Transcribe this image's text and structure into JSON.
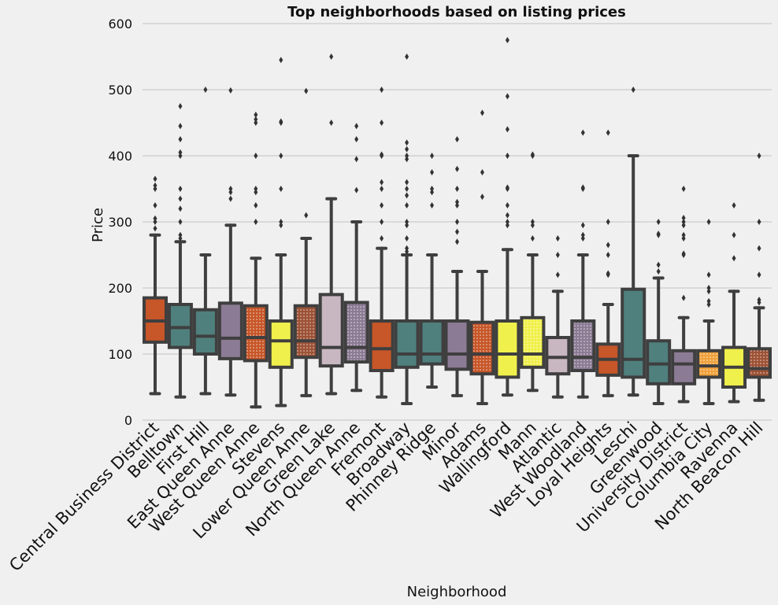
{
  "chart_data": {
    "type": "box",
    "title": "Top neighborhoods based on listing prices",
    "xlabel": "Neighborhood",
    "ylabel": "Price",
    "ylim": [
      -10,
      600
    ],
    "yticks": [
      0,
      100,
      200,
      300,
      400,
      500,
      600
    ],
    "grid": "horizontal",
    "categories": [
      "Central Business District",
      "Belltown",
      "First Hill",
      "East Queen Anne",
      "West Queen Anne",
      "Stevens",
      "Lower Queen Anne",
      "Green Lake",
      "North Queen Anne",
      "Fremont",
      "Broadway",
      "Phinney Ridge",
      "Minor",
      "Adams",
      "Wallingford",
      "Mann",
      "Atlantic",
      "West Woodland",
      "Loyal Heights",
      "Leschi",
      "Greenwood",
      "University District",
      "Columbia City",
      "Ravenna",
      "North Beacon Hill"
    ],
    "boxes": [
      {
        "min": 40,
        "q1": 118,
        "median": 150,
        "q3": 185,
        "max": 280,
        "color": "#c75628",
        "hatch": false,
        "outliers": [
          290,
          300,
          305,
          325,
          350,
          355,
          365
        ]
      },
      {
        "min": 35,
        "q1": 110,
        "median": 140,
        "q3": 175,
        "max": 270,
        "color": "#4f807d",
        "hatch": false,
        "outliers": [
          275,
          280,
          300,
          320,
          335,
          350,
          400,
          405,
          425,
          445,
          475
        ]
      },
      {
        "min": 40,
        "q1": 100,
        "median": 127,
        "q3": 167,
        "max": 250,
        "color": "#4f807d",
        "hatch": false,
        "outliers": [
          500
        ]
      },
      {
        "min": 38,
        "q1": 93,
        "median": 124,
        "q3": 177,
        "max": 295,
        "color": "#8c7b94",
        "hatch": false,
        "outliers": [
          335,
          345,
          350,
          499
        ]
      },
      {
        "min": 20,
        "q1": 90,
        "median": 125,
        "q3": 173,
        "max": 245,
        "color": "#c75628",
        "hatch": true,
        "outliers": [
          300,
          325,
          345,
          350,
          400,
          450,
          455,
          462
        ]
      },
      {
        "min": 22,
        "q1": 80,
        "median": 120,
        "q3": 150,
        "max": 250,
        "color": "#f0f04c",
        "hatch": false,
        "outliers": [
          295,
          300,
          350,
          400,
          450,
          452,
          545
        ]
      },
      {
        "min": 37,
        "q1": 95,
        "median": 120,
        "q3": 173,
        "max": 275,
        "color": "#9d5236",
        "hatch": true,
        "outliers": [
          310,
          498
        ]
      },
      {
        "min": 40,
        "q1": 82,
        "median": 110,
        "q3": 190,
        "max": 335,
        "color": "#c8b6c0",
        "hatch": false,
        "outliers": [
          450,
          550
        ]
      },
      {
        "min": 45,
        "q1": 88,
        "median": 110,
        "q3": 178,
        "max": 300,
        "color": "#8c7b94",
        "hatch": true,
        "outliers": [
          348,
          395,
          425,
          445
        ]
      },
      {
        "min": 35,
        "q1": 75,
        "median": 108,
        "q3": 150,
        "max": 260,
        "color": "#c75628",
        "hatch": false,
        "outliers": [
          275,
          300,
          325,
          350,
          360,
          400,
          402,
          450,
          500
        ]
      },
      {
        "min": 25,
        "q1": 80,
        "median": 100,
        "q3": 150,
        "max": 250,
        "color": "#4f807d",
        "hatch": false,
        "outliers": [
          255,
          260,
          275,
          295,
          300,
          325,
          340,
          350,
          360,
          395,
          400,
          410,
          420,
          550
        ]
      },
      {
        "min": 50,
        "q1": 85,
        "median": 100,
        "q3": 150,
        "max": 250,
        "color": "#4f807d",
        "hatch": false,
        "outliers": [
          325,
          345,
          350,
          375,
          400
        ]
      },
      {
        "min": 37,
        "q1": 77,
        "median": 100,
        "q3": 150,
        "max": 225,
        "color": "#8c7b94",
        "hatch": false,
        "outliers": [
          270,
          285,
          300,
          325,
          330,
          350,
          380,
          425
        ]
      },
      {
        "min": 25,
        "q1": 70,
        "median": 100,
        "q3": 148,
        "max": 225,
        "color": "#c75628",
        "hatch": true,
        "outliers": [
          338,
          375,
          465
        ]
      },
      {
        "min": 38,
        "q1": 65,
        "median": 100,
        "q3": 150,
        "max": 258,
        "color": "#f0f04c",
        "hatch": false,
        "outliers": [
          295,
          300,
          310,
          325,
          350,
          352,
          400,
          440,
          490,
          575
        ]
      },
      {
        "min": 45,
        "q1": 80,
        "median": 100,
        "q3": 155,
        "max": 250,
        "color": "#f0f04c",
        "hatch": true,
        "outliers": [
          275,
          295,
          300,
          400,
          402
        ]
      },
      {
        "min": 35,
        "q1": 70,
        "median": 95,
        "q3": 125,
        "max": 195,
        "color": "#c8b6c0",
        "hatch": false,
        "outliers": [
          220,
          250,
          275
        ]
      },
      {
        "min": 35,
        "q1": 75,
        "median": 95,
        "q3": 150,
        "max": 250,
        "color": "#8c7b94",
        "hatch": true,
        "outliers": [
          275,
          280,
          295,
          350,
          352,
          435
        ]
      },
      {
        "min": 37,
        "q1": 68,
        "median": 92,
        "q3": 115,
        "max": 175,
        "color": "#c75628",
        "hatch": false,
        "outliers": [
          220,
          222,
          250,
          265,
          300,
          435
        ]
      },
      {
        "min": 38,
        "q1": 65,
        "median": 92,
        "q3": 198,
        "max": 400,
        "color": "#4f807d",
        "hatch": false,
        "outliers": [
          500
        ]
      },
      {
        "min": 25,
        "q1": 55,
        "median": 85,
        "q3": 120,
        "max": 215,
        "color": "#4f807d",
        "hatch": false,
        "outliers": [
          225,
          235,
          280,
          282,
          300
        ]
      },
      {
        "min": 28,
        "q1": 55,
        "median": 85,
        "q3": 105,
        "max": 155,
        "color": "#8c7b94",
        "hatch": false,
        "outliers": [
          185,
          250,
          252,
          275,
          280,
          295,
          300,
          306,
          350
        ]
      },
      {
        "min": 25,
        "q1": 65,
        "median": 82,
        "q3": 105,
        "max": 150,
        "color": "#f0a23c",
        "hatch": true,
        "outliers": [
          175,
          180,
          195,
          200,
          220,
          300
        ]
      },
      {
        "min": 28,
        "q1": 50,
        "median": 80,
        "q3": 110,
        "max": 195,
        "color": "#f0f04c",
        "hatch": false,
        "outliers": [
          245,
          280,
          325
        ]
      },
      {
        "min": 30,
        "q1": 65,
        "median": 78,
        "q3": 108,
        "max": 170,
        "color": "#9d5236",
        "hatch": true,
        "outliers": [
          178,
          182,
          220,
          260,
          300,
          400
        ]
      }
    ]
  }
}
